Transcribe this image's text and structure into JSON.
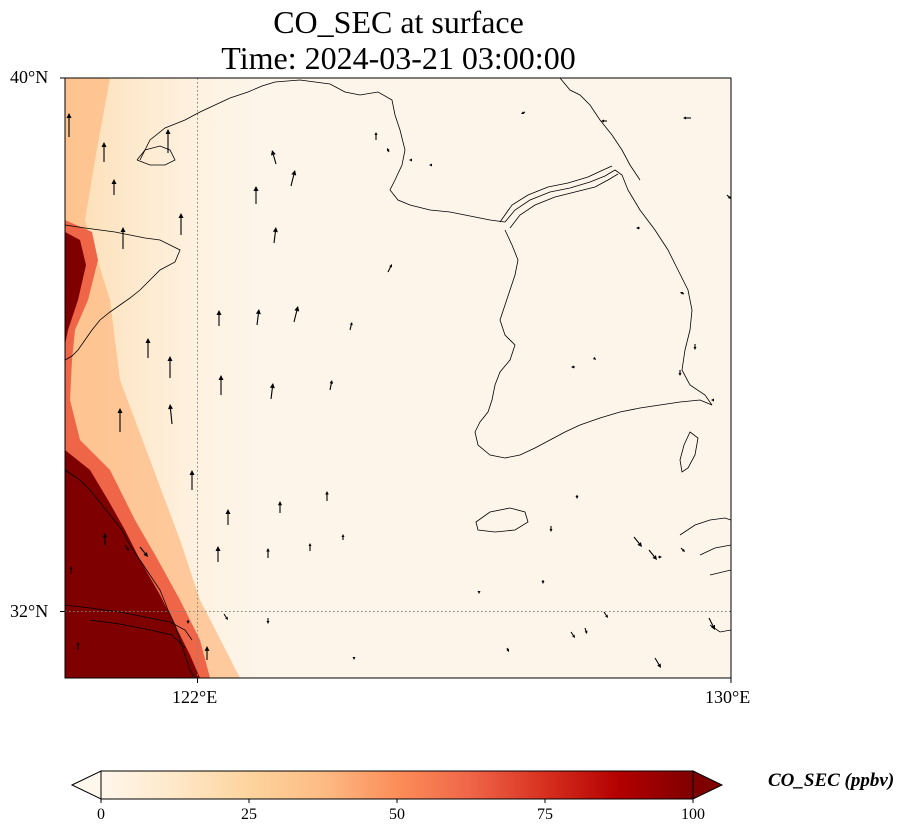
{
  "title": {
    "line1": "CO_SEC at surface",
    "line2": "Time: 2024-03-21 03:00:00"
  },
  "axes": {
    "lat_ticks": [
      "40°N",
      "32°N"
    ],
    "lon_ticks": [
      "122°E",
      "130°E"
    ]
  },
  "colorbar": {
    "label": "CO_SEC (ppbv)",
    "ticks": [
      "0",
      "25",
      "50",
      "75",
      "100"
    ],
    "colormap": "OrRd",
    "colors": [
      "#fff7ec",
      "#fee8c8",
      "#fdd49e",
      "#fdbb84",
      "#fc8d59",
      "#ef6548",
      "#d7301f",
      "#b30000",
      "#7f0000"
    ]
  },
  "chart_data": {
    "type": "heatmap",
    "title": "CO_SEC at surface",
    "subtitle": "Time: 2024-03-21 03:00:00",
    "variable": "CO_SEC",
    "units": "ppbv",
    "value_range": [
      0,
      100
    ],
    "lon_range": [
      120,
      130
    ],
    "lat_range": [
      31,
      40
    ],
    "xticks": [
      122,
      130
    ],
    "yticks": [
      32,
      40
    ],
    "xlabel": "",
    "ylabel": "",
    "gridlines": "dotted at 122°E and 32°N",
    "extend": "both",
    "notes": "High concentrations (>100 ppbv) along the western coast near 120–121°E, 31–36°N; near-zero elsewhere. Overlaid wind vectors generally pointing north."
  }
}
